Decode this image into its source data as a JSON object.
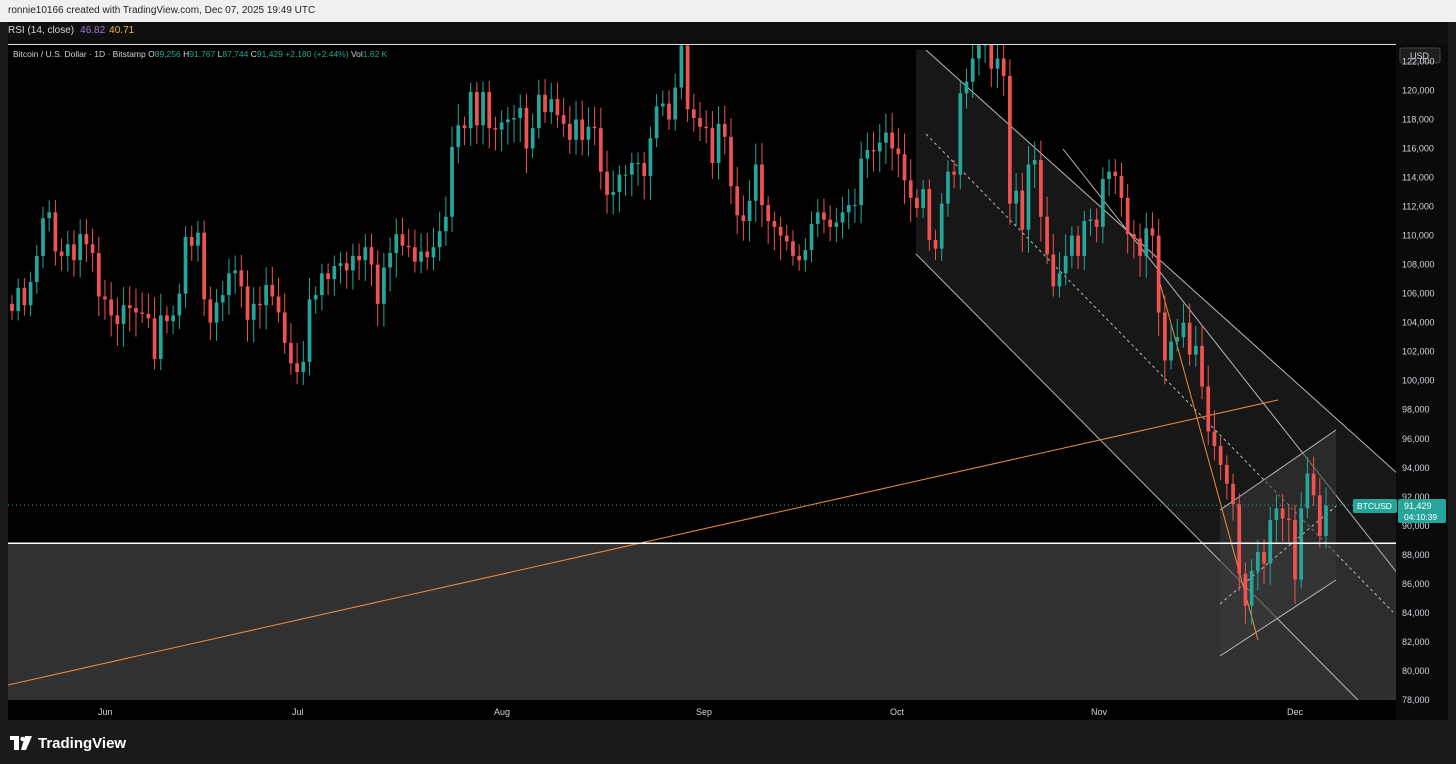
{
  "header": {
    "created_by": "ronnie10166 created with TradingView.com, Dec 07, 2025 19:49 UTC"
  },
  "indicator": {
    "label": "RSI (14, close)",
    "value_1": "46.82",
    "value_2": "40.71"
  },
  "legend": {
    "symbol": "Bitcoin / U.S. Dollar · 1D · Bitstamp",
    "open_label": "O",
    "open": "89,256",
    "high_label": "H",
    "high": "91,767",
    "low_label": "L",
    "low": "87,744",
    "close_label": "C",
    "close": "91,429",
    "change": "+2,180 (+2.44%)",
    "vol_label": "Vol",
    "vol": "1.62 K"
  },
  "price_axis": {
    "currency": "USD",
    "ticks": [
      "122,000",
      "120,000",
      "118,000",
      "116,000",
      "114,000",
      "112,000",
      "110,000",
      "108,000",
      "106,000",
      "104,000",
      "102,000",
      "100,000",
      "98,000",
      "96,000",
      "94,000",
      "92,000",
      "90,000",
      "88,000",
      "86,000",
      "84,000",
      "82,000",
      "80,000",
      "78,000"
    ],
    "symbol_tag": "BTCUSD",
    "last_price": "91,429",
    "countdown": "04:10:39"
  },
  "time_axis": {
    "labels": [
      "Jun",
      "Jul",
      "Aug",
      "Sep",
      "Oct",
      "Nov",
      "Dec"
    ]
  },
  "branding": {
    "name": "TradingView"
  },
  "colors": {
    "up": "#26a69a",
    "down": "#ef5350",
    "trend": "#f08a3c",
    "channel": "#b8b8b8",
    "bg": "#000000"
  },
  "chart_data": {
    "type": "candlestick",
    "ylim": [
      78000,
      123200
    ],
    "y_ticks": [
      78000,
      80000,
      82000,
      84000,
      86000,
      88000,
      90000,
      92000,
      94000,
      96000,
      98000,
      100000,
      102000,
      104000,
      106000,
      108000,
      110000,
      112000,
      114000,
      116000,
      118000,
      120000,
      122000
    ],
    "close_prices": [
      104800,
      106400,
      105200,
      106800,
      108600,
      111200,
      111600,
      108900,
      108600,
      109400,
      108300,
      110100,
      109400,
      108800,
      105800,
      105600,
      104500,
      103900,
      105200,
      105000,
      104700,
      104600,
      104300,
      101500,
      104500,
      104100,
      104500,
      106000,
      109900,
      109300,
      110200,
      105600,
      104000,
      105400,
      105900,
      107400,
      107600,
      106500,
      104200,
      105300,
      105200,
      106600,
      105800,
      104700,
      102600,
      101200,
      100600,
      101300,
      105600,
      105900,
      107400,
      107000,
      107900,
      108100,
      107600,
      108600,
      108300,
      109200,
      108000,
      105300,
      107800,
      108800,
      110100,
      109300,
      109200,
      108200,
      108900,
      108500,
      109200,
      110300,
      111300,
      116100,
      117600,
      117400,
      119900,
      117600,
      119900,
      117400,
      117300,
      117800,
      118000,
      118100,
      118800,
      116000,
      117400,
      119700,
      118500,
      119400,
      118300,
      117700,
      116600,
      118000,
      116600,
      117500,
      117400,
      114400,
      112800,
      113000,
      114200,
      114200,
      115000,
      115000,
      114100,
      116700,
      118900,
      119100,
      118000,
      120200,
      123100,
      118700,
      118100,
      117500,
      117400,
      115000,
      117700,
      116800,
      113400,
      111400,
      111000,
      112400,
      114900,
      112100,
      111000,
      110600,
      110000,
      109600,
      108600,
      108300,
      109000,
      110800,
      111600,
      111100,
      110600,
      110900,
      111600,
      112100,
      112100,
      115300,
      115900,
      115800,
      116400,
      117100,
      116000,
      115600,
      113800,
      112600,
      111900,
      113200,
      109700,
      109100,
      112200,
      114400,
      114200,
      119800,
      120600,
      122200,
      123100,
      123500,
      121500,
      122200,
      121000,
      112200,
      113100,
      110400,
      114900,
      115200,
      111300,
      108700,
      106500,
      107400,
      108600,
      110000,
      108600,
      111000,
      111100,
      110600,
      113900,
      114400,
      114100,
      112600,
      110100,
      109800,
      108600,
      110500,
      110000,
      104700,
      101400,
      102700,
      103000,
      104000,
      101800,
      102400,
      99600,
      96500,
      95500,
      94200,
      92900,
      91500,
      86700,
      84500,
      86900,
      88200,
      87400,
      90400,
      91200,
      90500,
      90400,
      86300,
      91200,
      93600,
      92100,
      89300,
      91400
    ]
  }
}
